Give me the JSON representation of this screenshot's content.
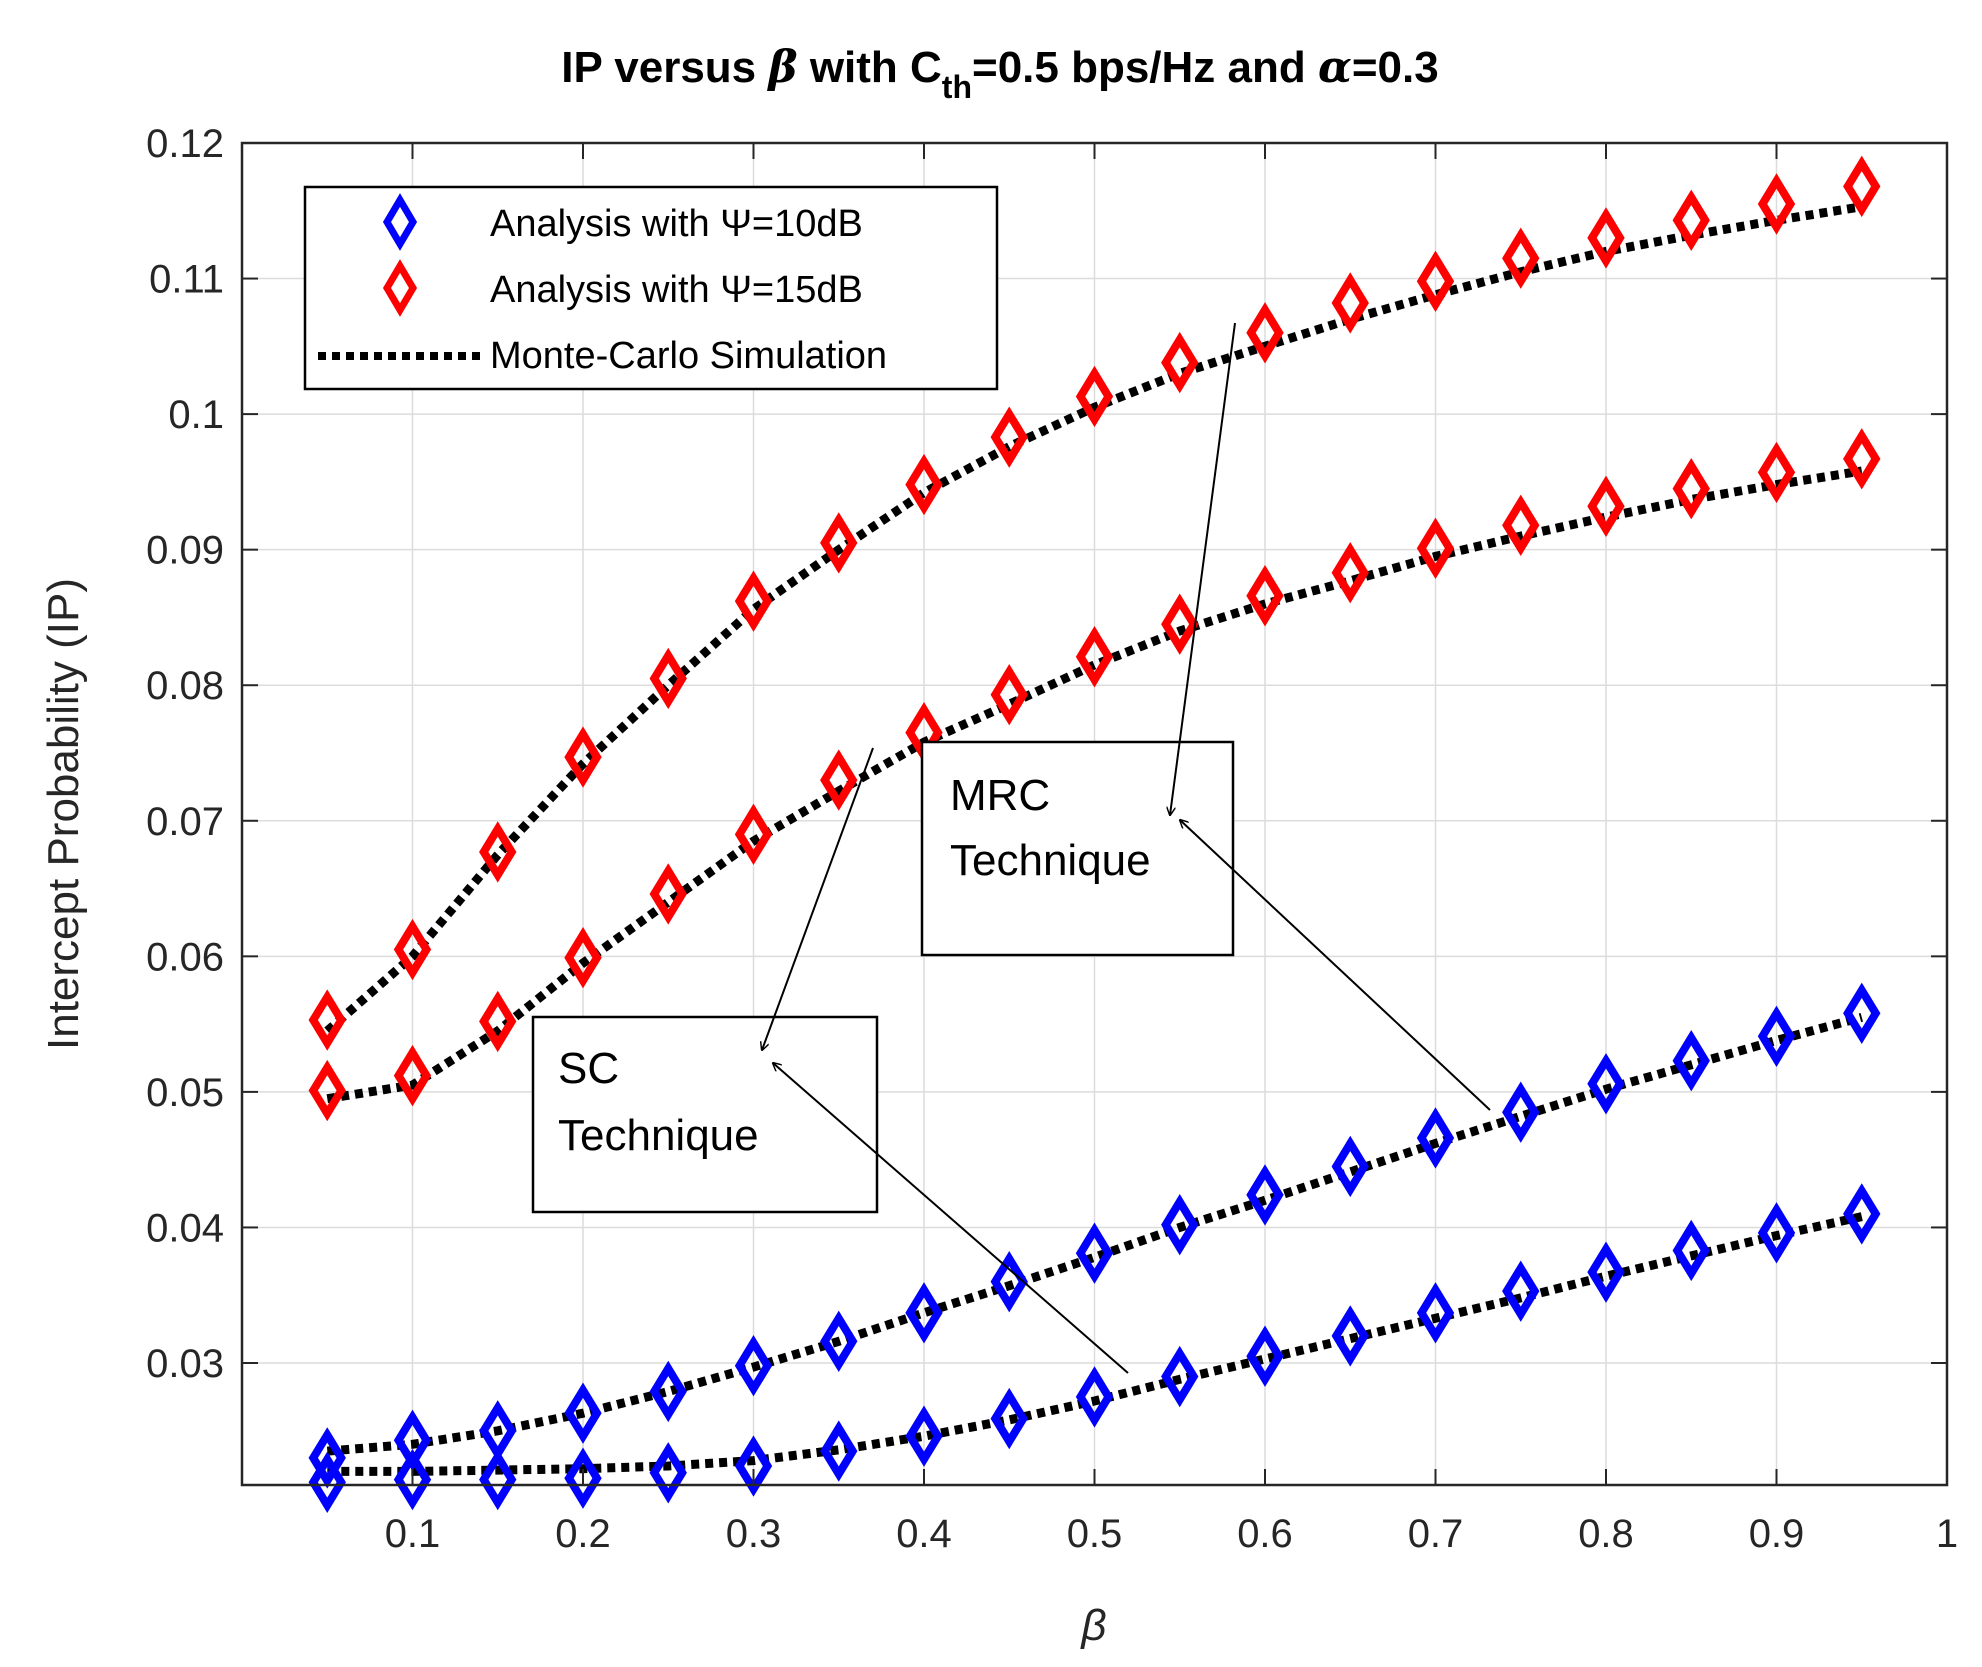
{
  "chart_data": {
    "type": "line",
    "title": {
      "prefix": "IP versus ",
      "beta_symbol": "β",
      "mid": " with C",
      "subscript": "th",
      "rest": "=0.5 bps/Hz and ",
      "alpha_symbol": "α",
      "suffix": "=0.3"
    },
    "xlabel": "β",
    "ylabel": "Intercept Probability (IP)",
    "xlim": [
      0,
      1
    ],
    "ylim": [
      0.021,
      0.12
    ],
    "xticks": [
      "0.1",
      "0.2",
      "0.3",
      "0.4",
      "0.5",
      "0.6",
      "0.7",
      "0.8",
      "0.9",
      "1"
    ],
    "xtick_values": [
      0.1,
      0.2,
      0.3,
      0.4,
      0.5,
      0.6,
      0.7,
      0.8,
      0.9,
      1
    ],
    "yticks": [
      "0.03",
      "0.04",
      "0.05",
      "0.06",
      "0.07",
      "0.08",
      "0.09",
      "0.1",
      "0.11",
      "0.12"
    ],
    "ytick_values": [
      0.03,
      0.04,
      0.05,
      0.06,
      0.07,
      0.08,
      0.09,
      0.1,
      0.11,
      0.12
    ],
    "grid": true,
    "x": [
      0.05,
      0.1,
      0.15,
      0.2,
      0.25,
      0.3,
      0.35,
      0.4,
      0.45,
      0.5,
      0.55,
      0.6,
      0.65,
      0.7,
      0.75,
      0.8,
      0.85,
      0.9,
      0.95
    ],
    "series": [
      {
        "name": "Analysis with Ψ=15dB",
        "technique": "MRC",
        "marker": "diamond",
        "color": "#ff0000",
        "values": [
          0.0553,
          0.0605,
          0.0677,
          0.0747,
          0.0805,
          0.0862,
          0.0905,
          0.0948,
          0.0983,
          0.1013,
          0.1038,
          0.106,
          0.1082,
          0.1098,
          0.1115,
          0.113,
          0.1143,
          0.1155,
          0.1168
        ]
      },
      {
        "name": "Analysis with Ψ=15dB",
        "technique": "SC",
        "marker": "diamond",
        "color": "#ff0000",
        "values": [
          0.0501,
          0.0512,
          0.0552,
          0.0599,
          0.0646,
          0.069,
          0.073,
          0.0765,
          0.0793,
          0.0821,
          0.0845,
          0.0866,
          0.0883,
          0.0901,
          0.0918,
          0.0932,
          0.0945,
          0.0957,
          0.0967
        ]
      },
      {
        "name": "Analysis with Ψ=10dB",
        "technique": "MRC",
        "marker": "diamond",
        "color": "#0000ff",
        "values": [
          0.023,
          0.0243,
          0.025,
          0.0263,
          0.0279,
          0.0298,
          0.0316,
          0.0337,
          0.036,
          0.0381,
          0.0402,
          0.0424,
          0.0445,
          0.0466,
          0.0485,
          0.0506,
          0.0523,
          0.0541,
          0.0558
        ]
      },
      {
        "name": "Analysis with Ψ=10dB",
        "technique": "SC",
        "marker": "diamond",
        "color": "#0000ff",
        "values": [
          0.0212,
          0.0214,
          0.0214,
          0.0215,
          0.0219,
          0.0224,
          0.0235,
          0.0246,
          0.0259,
          0.0275,
          0.029,
          0.0305,
          0.032,
          0.0337,
          0.0353,
          0.0367,
          0.0383,
          0.0396,
          0.041
        ]
      }
    ],
    "simulation_curves": [
      [
        0.0545,
        0.06,
        0.0675,
        0.0742,
        0.08,
        0.0856,
        0.09,
        0.0942,
        0.0976,
        0.1005,
        0.103,
        0.105,
        0.107,
        0.1088,
        0.1105,
        0.112,
        0.1132,
        0.1143,
        0.1153
      ],
      [
        0.0495,
        0.0505,
        0.0545,
        0.0595,
        0.064,
        0.0685,
        0.0722,
        0.0758,
        0.0786,
        0.0815,
        0.084,
        0.086,
        0.0877,
        0.0895,
        0.091,
        0.0924,
        0.0937,
        0.0948,
        0.0958
      ],
      [
        0.0235,
        0.024,
        0.025,
        0.0263,
        0.0279,
        0.0297,
        0.0316,
        0.0337,
        0.0357,
        0.0378,
        0.04,
        0.042,
        0.0441,
        0.0462,
        0.0482,
        0.0502,
        0.052,
        0.0538,
        0.0555
      ],
      [
        0.022,
        0.022,
        0.0221,
        0.0222,
        0.0224,
        0.0228,
        0.0236,
        0.0246,
        0.0258,
        0.0272,
        0.0288,
        0.0303,
        0.0318,
        0.0333,
        0.0348,
        0.0364,
        0.0379,
        0.0394,
        0.0408
      ]
    ],
    "legend": {
      "placement": "top-left",
      "entries": [
        {
          "label": "Analysis with Ψ=10dB",
          "kind": "marker",
          "color": "#0000ff"
        },
        {
          "label": "Analysis with Ψ=15dB",
          "kind": "marker",
          "color": "#ff0000"
        },
        {
          "label": "Monte-Carlo Simulation",
          "kind": "dotted-line",
          "color": "#000000"
        }
      ]
    },
    "annotations": [
      {
        "id": "mrc",
        "line1": "MRC",
        "line2": "Technique",
        "points_to_series": [
          0,
          2
        ]
      },
      {
        "id": "sc",
        "line1": "SC",
        "line2": "Technique",
        "points_to_series": [
          1,
          3
        ]
      }
    ]
  }
}
